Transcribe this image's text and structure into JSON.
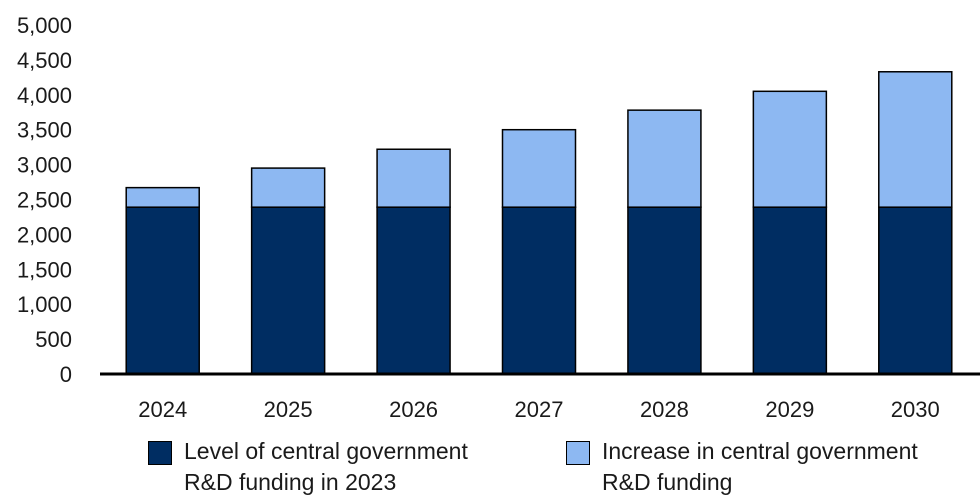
{
  "chart_data": {
    "type": "bar",
    "stacked": true,
    "categories": [
      "2024",
      "2025",
      "2026",
      "2027",
      "2028",
      "2029",
      "2030"
    ],
    "series": [
      {
        "name": "Level of central government R&D funding in 2023",
        "values": [
          2390,
          2390,
          2390,
          2390,
          2390,
          2390,
          2390
        ]
      },
      {
        "name": "Increase in central government R&D funding",
        "values": [
          280,
          560,
          830,
          1110,
          1390,
          1660,
          1940
        ]
      }
    ],
    "ylim": [
      0,
      5000
    ],
    "yticks": [
      "0",
      "500",
      "1,000",
      "1,500",
      "2,000",
      "2,500",
      "3,000",
      "3,500",
      "4,000",
      "4,500",
      "5,000"
    ],
    "grid": false,
    "legend_position": "bottom",
    "colors": [
      "#002d62",
      "#8db8f2"
    ]
  },
  "legend": {
    "item1_label": "Level of central government\nR&D funding in 2023",
    "item2_label": "Increase in central government\nR&D funding"
  }
}
